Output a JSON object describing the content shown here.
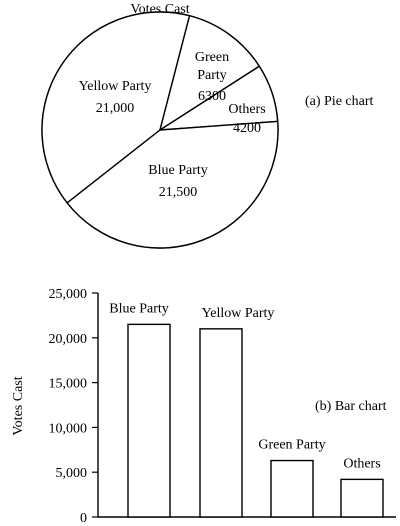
{
  "chart_data": [
    {
      "type": "pie",
      "title": "Votes Cast",
      "caption": "(a) Pie chart",
      "slices": [
        {
          "name": "Yellow Party",
          "value": 21000,
          "value_label": "21,000"
        },
        {
          "name": "Green Party",
          "name_lines": [
            "Green",
            "Party"
          ],
          "value": 6300,
          "value_label": "6300"
        },
        {
          "name": "Others",
          "value": 4200,
          "value_label": "4200"
        },
        {
          "name": "Blue Party",
          "value": 21500,
          "value_label": "21,500"
        }
      ]
    },
    {
      "type": "bar",
      "caption": "(b) Bar chart",
      "ylabel": "Votes Cast",
      "ylim": [
        0,
        25000
      ],
      "yticks": [
        0,
        5000,
        10000,
        15000,
        20000,
        25000
      ],
      "ytick_labels": [
        "0",
        "5,000",
        "10,000",
        "15,000",
        "20,000",
        "25,000"
      ],
      "categories": [
        "Blue Party",
        "Yellow Party",
        "Green Party",
        "Others"
      ],
      "values": [
        21500,
        21000,
        6300,
        4200
      ]
    }
  ]
}
